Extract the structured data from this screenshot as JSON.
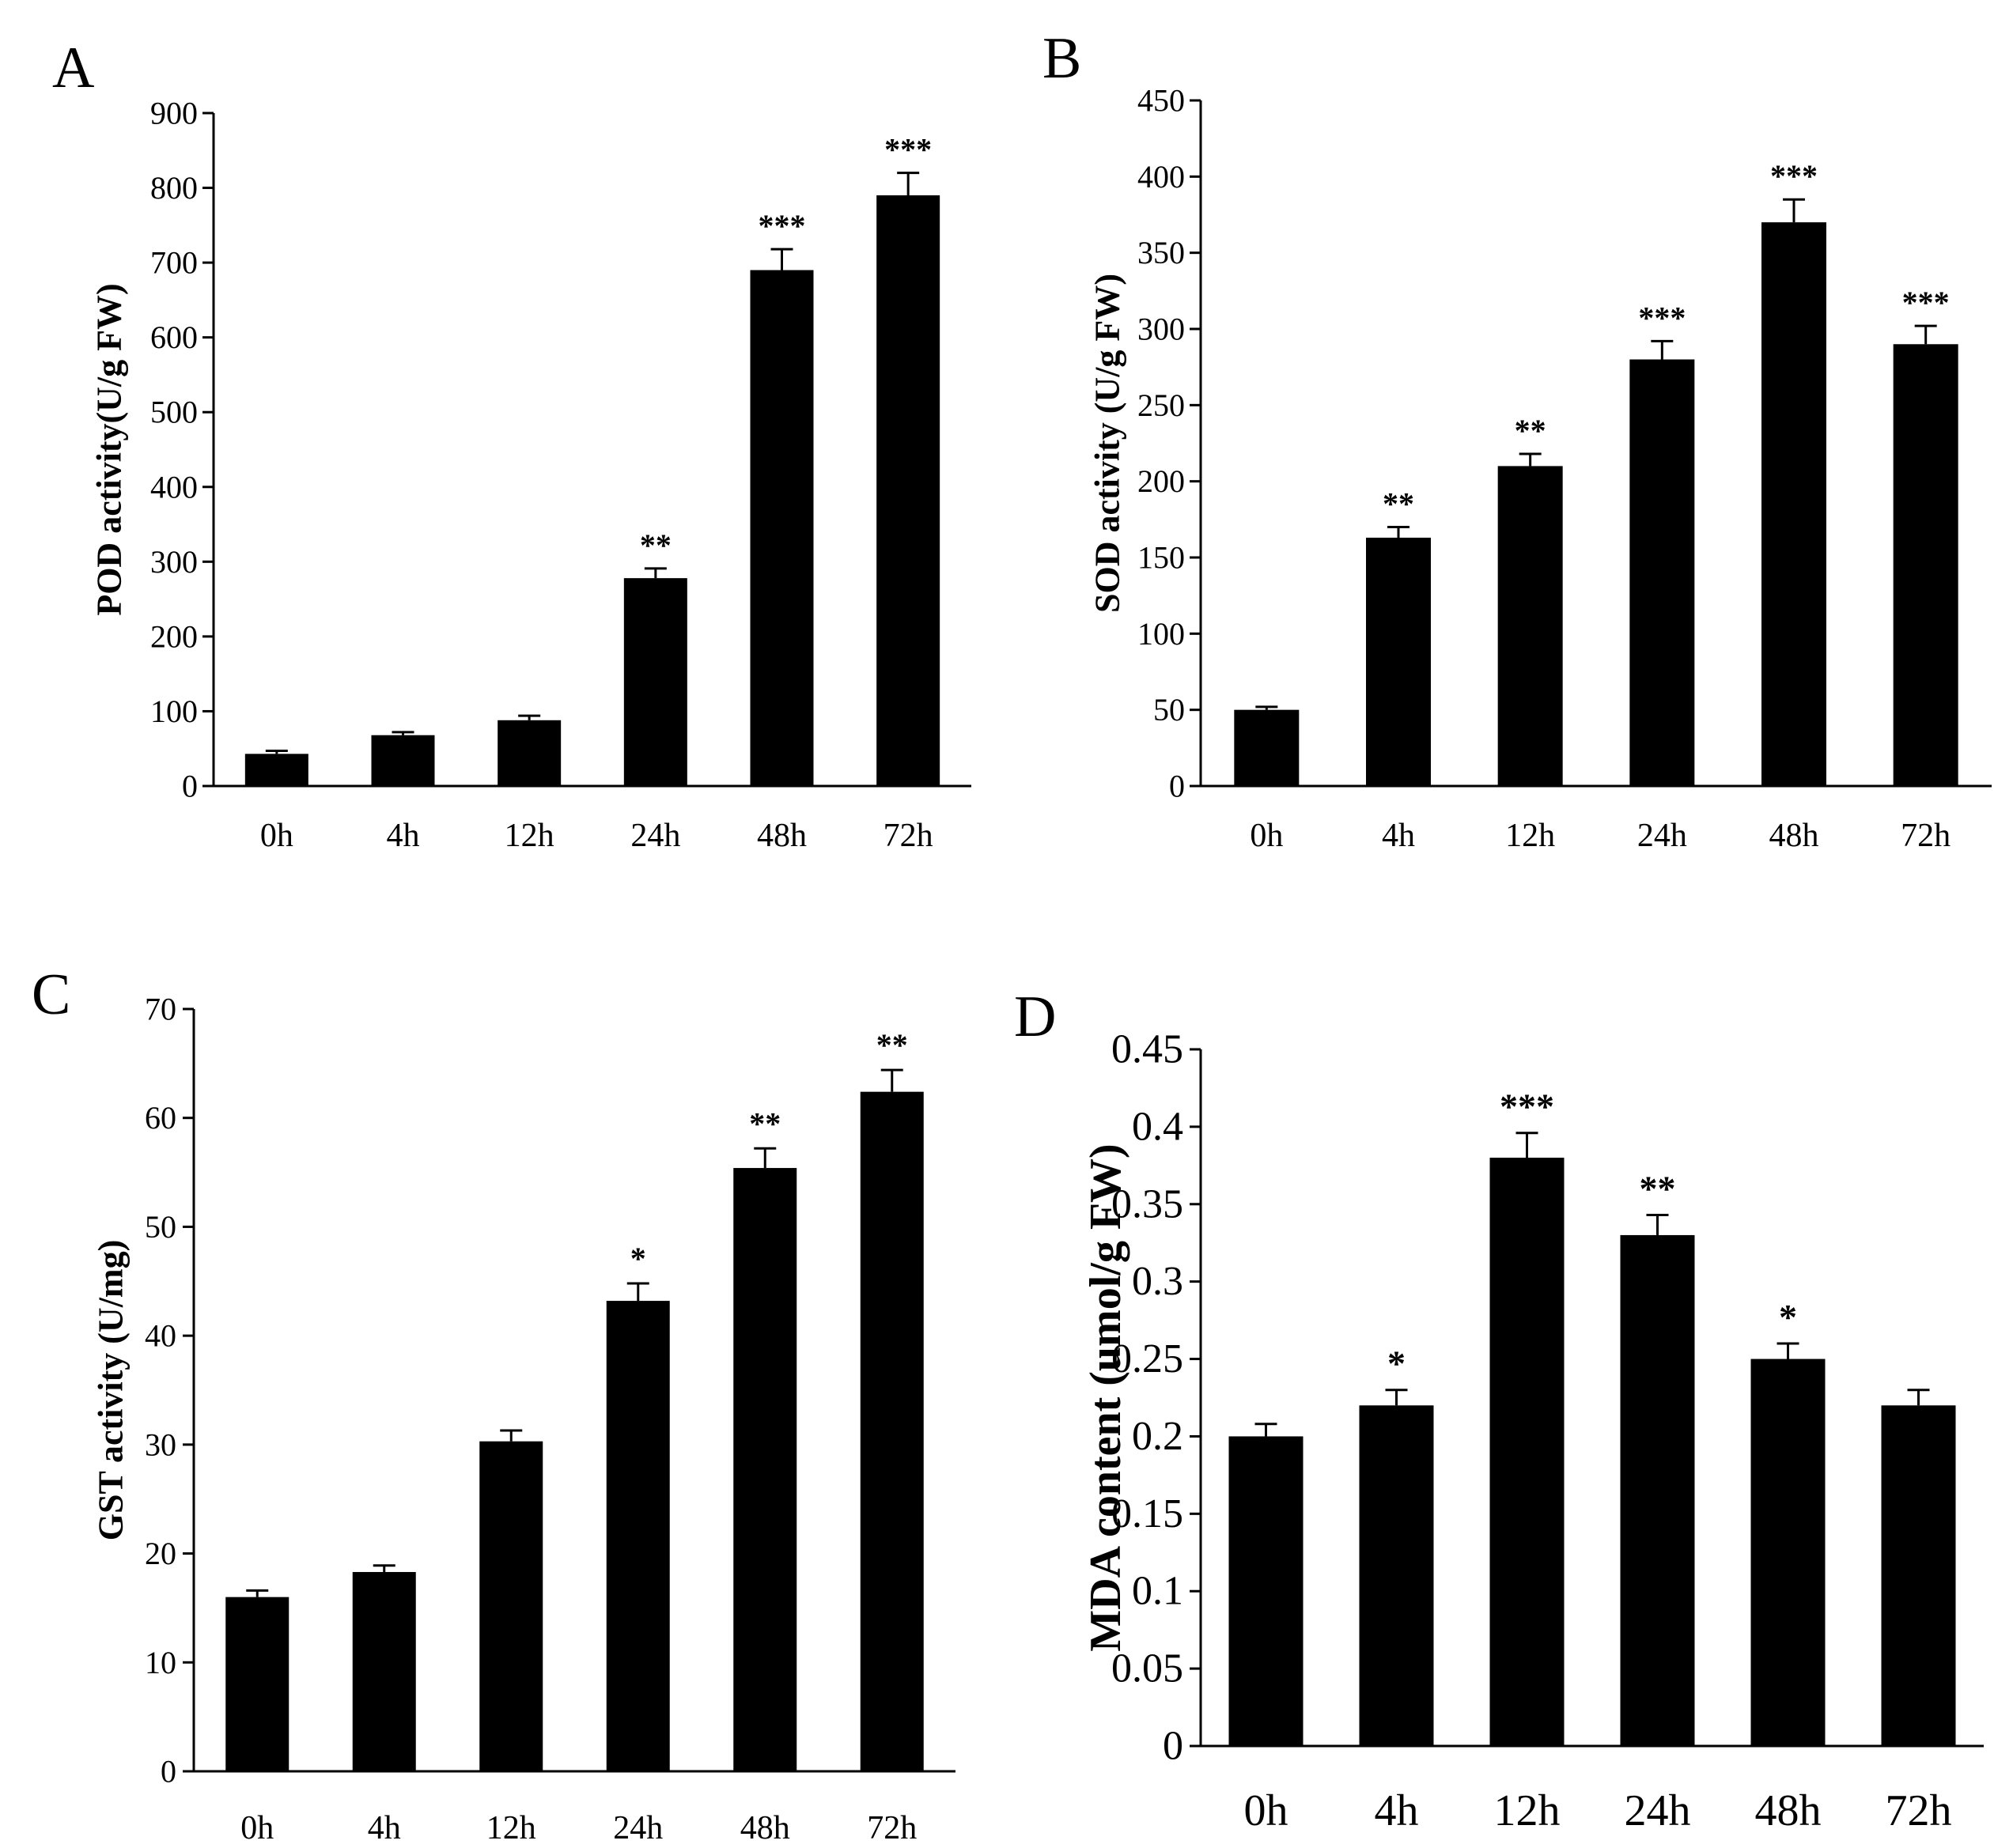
{
  "chart_data": [
    {
      "panel": "A",
      "type": "bar",
      "ylabel": "POD activity(U/g FW)",
      "categories": [
        "0h",
        "4h",
        "12h",
        "24h",
        "48h",
        "72h"
      ],
      "values": [
        43,
        68,
        88,
        278,
        690,
        790
      ],
      "errors": [
        4,
        4,
        6,
        13,
        28,
        30
      ],
      "significance": [
        "",
        "",
        "",
        "**",
        "***",
        "***"
      ],
      "ylim": [
        0,
        900
      ],
      "yticks": [
        "0",
        "100",
        "200",
        "300",
        "400",
        "500",
        "600",
        "700",
        "800",
        "900"
      ],
      "color": "#000000"
    },
    {
      "panel": "B",
      "type": "bar",
      "ylabel": "SOD activity (U/g FW)",
      "categories": [
        "0h",
        "4h",
        "12h",
        "24h",
        "48h",
        "72h"
      ],
      "values": [
        50,
        163,
        210,
        280,
        370,
        290
      ],
      "errors": [
        2,
        7,
        8,
        12,
        15,
        12
      ],
      "significance": [
        "",
        "**",
        "**",
        "***",
        "***",
        "***"
      ],
      "ylim": [
        0,
        450
      ],
      "yticks": [
        "0",
        "50",
        "100",
        "150",
        "200",
        "250",
        "300",
        "350",
        "400",
        "450"
      ],
      "color": "#000000"
    },
    {
      "panel": "C",
      "type": "bar",
      "ylabel": "GST activity (U/mg)",
      "categories": [
        "0h",
        "4h",
        "12h",
        "24h",
        "48h",
        "72h"
      ],
      "values": [
        16,
        18.3,
        30.3,
        43.2,
        55.4,
        62.4
      ],
      "errors": [
        0.6,
        0.6,
        1,
        1.6,
        1.8,
        2
      ],
      "significance": [
        "",
        "",
        "",
        "*",
        "**",
        "**"
      ],
      "ylim": [
        0,
        70
      ],
      "yticks": [
        "0",
        "10",
        "20",
        "30",
        "40",
        "50",
        "60",
        "70"
      ],
      "color": "#000000"
    },
    {
      "panel": "D",
      "type": "bar",
      "ylabel": "MDA content (umol/g FW)",
      "categories": [
        "0h",
        "4h",
        "12h",
        "24h",
        "48h",
        "72h"
      ],
      "values": [
        0.2,
        0.22,
        0.38,
        0.33,
        0.25,
        0.22
      ],
      "errors": [
        0.008,
        0.01,
        0.016,
        0.013,
        0.01,
        0.01
      ],
      "significance": [
        "",
        "*",
        "***",
        "**",
        "*",
        ""
      ],
      "ylim": [
        0,
        0.45
      ],
      "yticks": [
        "0",
        "0.05",
        "0.1",
        "0.15",
        "0.2",
        "0.25",
        "0.3",
        "0.35",
        "0.4",
        "0.45"
      ],
      "color": "#000000"
    }
  ]
}
